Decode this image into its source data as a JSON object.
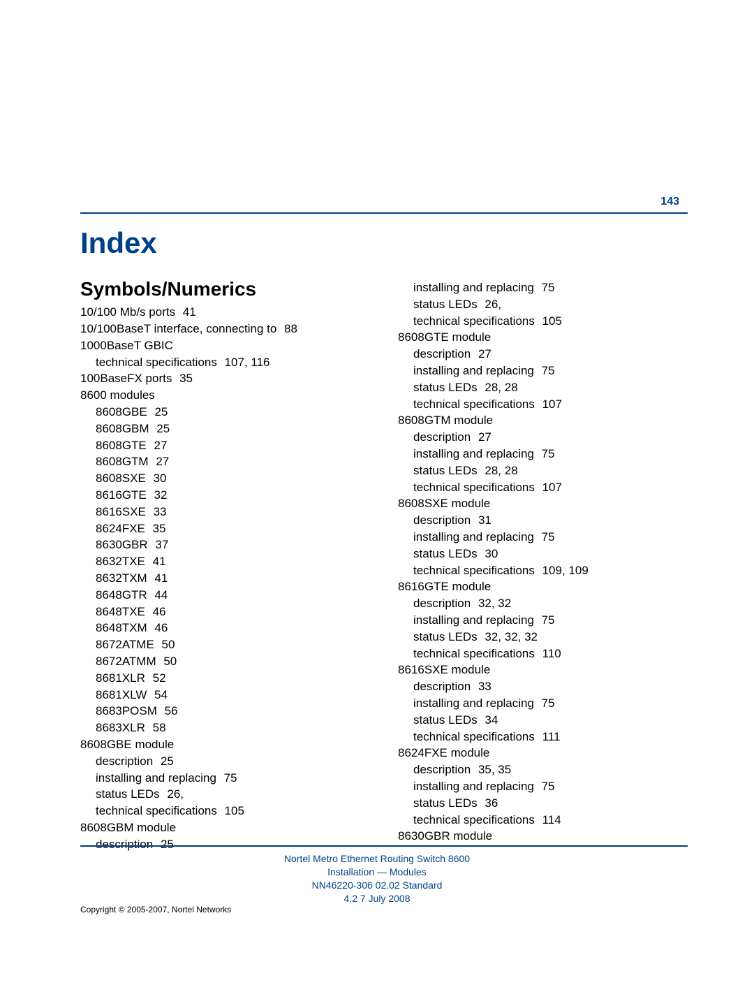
{
  "page_number": "143",
  "index_title": "Index",
  "section_title": "Symbols/Numerics",
  "colors": {
    "accent": "#003f87",
    "text": "#000000",
    "background": "#ffffff"
  },
  "typography": {
    "index_title_size_pt": 32,
    "section_title_size_pt": 21,
    "body_size_pt": 13,
    "footer_size_pt": 10
  },
  "columns": {
    "left": [
      {
        "indent": 0,
        "text": "10/100 Mb/s ports",
        "pages": "41"
      },
      {
        "indent": 0,
        "text": "10/100BaseT interface, connecting to",
        "pages": "88"
      },
      {
        "indent": 0,
        "text": "1000BaseT GBIC",
        "pages": ""
      },
      {
        "indent": 1,
        "text": "technical specifications",
        "pages": "107, 116"
      },
      {
        "indent": 0,
        "text": "100BaseFX ports",
        "pages": "35"
      },
      {
        "indent": 0,
        "text": "8600 modules",
        "pages": ""
      },
      {
        "indent": 1,
        "text": "8608GBE",
        "pages": "25"
      },
      {
        "indent": 1,
        "text": "8608GBM",
        "pages": "25"
      },
      {
        "indent": 1,
        "text": "8608GTE",
        "pages": "27"
      },
      {
        "indent": 1,
        "text": "8608GTM",
        "pages": "27"
      },
      {
        "indent": 1,
        "text": "8608SXE",
        "pages": "30"
      },
      {
        "indent": 1,
        "text": "8616GTE",
        "pages": "32"
      },
      {
        "indent": 1,
        "text": "8616SXE",
        "pages": "33"
      },
      {
        "indent": 1,
        "text": "8624FXE",
        "pages": "35"
      },
      {
        "indent": 1,
        "text": "8630GBR",
        "pages": "37"
      },
      {
        "indent": 1,
        "text": "8632TXE",
        "pages": "41"
      },
      {
        "indent": 1,
        "text": "8632TXM",
        "pages": "41"
      },
      {
        "indent": 1,
        "text": "8648GTR",
        "pages": "44"
      },
      {
        "indent": 1,
        "text": "8648TXE",
        "pages": "46"
      },
      {
        "indent": 1,
        "text": "8648TXM",
        "pages": "46"
      },
      {
        "indent": 1,
        "text": "8672ATME",
        "pages": "50"
      },
      {
        "indent": 1,
        "text": "8672ATMM",
        "pages": "50"
      },
      {
        "indent": 1,
        "text": "8681XLR",
        "pages": "52"
      },
      {
        "indent": 1,
        "text": "8681XLW",
        "pages": "54"
      },
      {
        "indent": 1,
        "text": "8683POSM",
        "pages": "56"
      },
      {
        "indent": 1,
        "text": "8683XLR",
        "pages": "58"
      },
      {
        "indent": 0,
        "text": "8608GBE module",
        "pages": ""
      },
      {
        "indent": 1,
        "text": "description",
        "pages": "25"
      },
      {
        "indent": 1,
        "text": "installing and replacing",
        "pages": "75"
      },
      {
        "indent": 1,
        "text": "status LEDs",
        "pages": "26,"
      },
      {
        "indent": 1,
        "text": "technical specifications",
        "pages": "105"
      },
      {
        "indent": 0,
        "text": "8608GBM module",
        "pages": ""
      },
      {
        "indent": 1,
        "text": "description",
        "pages": "25"
      }
    ],
    "right": [
      {
        "indent": 1,
        "text": "installing and replacing",
        "pages": "75"
      },
      {
        "indent": 1,
        "text": "status LEDs",
        "pages": "26,"
      },
      {
        "indent": 1,
        "text": "technical specifications",
        "pages": "105"
      },
      {
        "indent": 0,
        "text": "8608GTE module",
        "pages": ""
      },
      {
        "indent": 1,
        "text": "description",
        "pages": "27"
      },
      {
        "indent": 1,
        "text": "installing and replacing",
        "pages": "75"
      },
      {
        "indent": 1,
        "text": "status LEDs",
        "pages": "28, 28"
      },
      {
        "indent": 1,
        "text": "technical specifications",
        "pages": "107"
      },
      {
        "indent": 0,
        "text": "8608GTM module",
        "pages": ""
      },
      {
        "indent": 1,
        "text": "description",
        "pages": "27"
      },
      {
        "indent": 1,
        "text": "installing and replacing",
        "pages": "75"
      },
      {
        "indent": 1,
        "text": "status LEDs",
        "pages": "28, 28"
      },
      {
        "indent": 1,
        "text": "technical specifications",
        "pages": "107"
      },
      {
        "indent": 0,
        "text": "8608SXE module",
        "pages": ""
      },
      {
        "indent": 1,
        "text": "description",
        "pages": "31"
      },
      {
        "indent": 1,
        "text": "installing and replacing",
        "pages": "75"
      },
      {
        "indent": 1,
        "text": "status LEDs",
        "pages": "30"
      },
      {
        "indent": 1,
        "text": "technical specifications",
        "pages": "109, 109"
      },
      {
        "indent": 0,
        "text": "8616GTE module",
        "pages": ""
      },
      {
        "indent": 1,
        "text": "description",
        "pages": "32, 32"
      },
      {
        "indent": 1,
        "text": "installing and replacing",
        "pages": "75"
      },
      {
        "indent": 1,
        "text": "status LEDs",
        "pages": "32, 32, 32"
      },
      {
        "indent": 1,
        "text": "technical specifications",
        "pages": "110"
      },
      {
        "indent": 0,
        "text": "8616SXE module",
        "pages": ""
      },
      {
        "indent": 1,
        "text": "description",
        "pages": "33"
      },
      {
        "indent": 1,
        "text": "installing and replacing",
        "pages": "75"
      },
      {
        "indent": 1,
        "text": "status LEDs",
        "pages": "34"
      },
      {
        "indent": 1,
        "text": "technical specifications",
        "pages": "111"
      },
      {
        "indent": 0,
        "text": "8624FXE module",
        "pages": ""
      },
      {
        "indent": 1,
        "text": "description",
        "pages": "35, 35"
      },
      {
        "indent": 1,
        "text": "installing and replacing",
        "pages": "75"
      },
      {
        "indent": 1,
        "text": "status LEDs",
        "pages": "36"
      },
      {
        "indent": 1,
        "text": "technical specifications",
        "pages": "114"
      },
      {
        "indent": 0,
        "text": "8630GBR module",
        "pages": ""
      }
    ]
  },
  "footer": {
    "line1": "Nortel Metro Ethernet Routing Switch 8600",
    "line2": "Installation — Modules",
    "line3": "NN46220-306   02.02   Standard",
    "line4": "4.2   7 July 2008",
    "copyright": "Copyright © 2005-2007, Nortel Networks"
  }
}
